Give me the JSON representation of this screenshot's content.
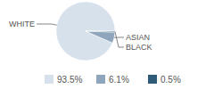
{
  "chart_data": {
    "type": "pie",
    "categories": [
      "WHITE",
      "ASIAN",
      "BLACK"
    ],
    "values": [
      93.5,
      6.1,
      0.5
    ],
    "value_labels": [
      "93.5%",
      "6.1%",
      "0.5%"
    ],
    "colors": [
      "#d6e1eb",
      "#8ea5bb",
      "#2f5a78"
    ],
    "legend": "bottom"
  }
}
